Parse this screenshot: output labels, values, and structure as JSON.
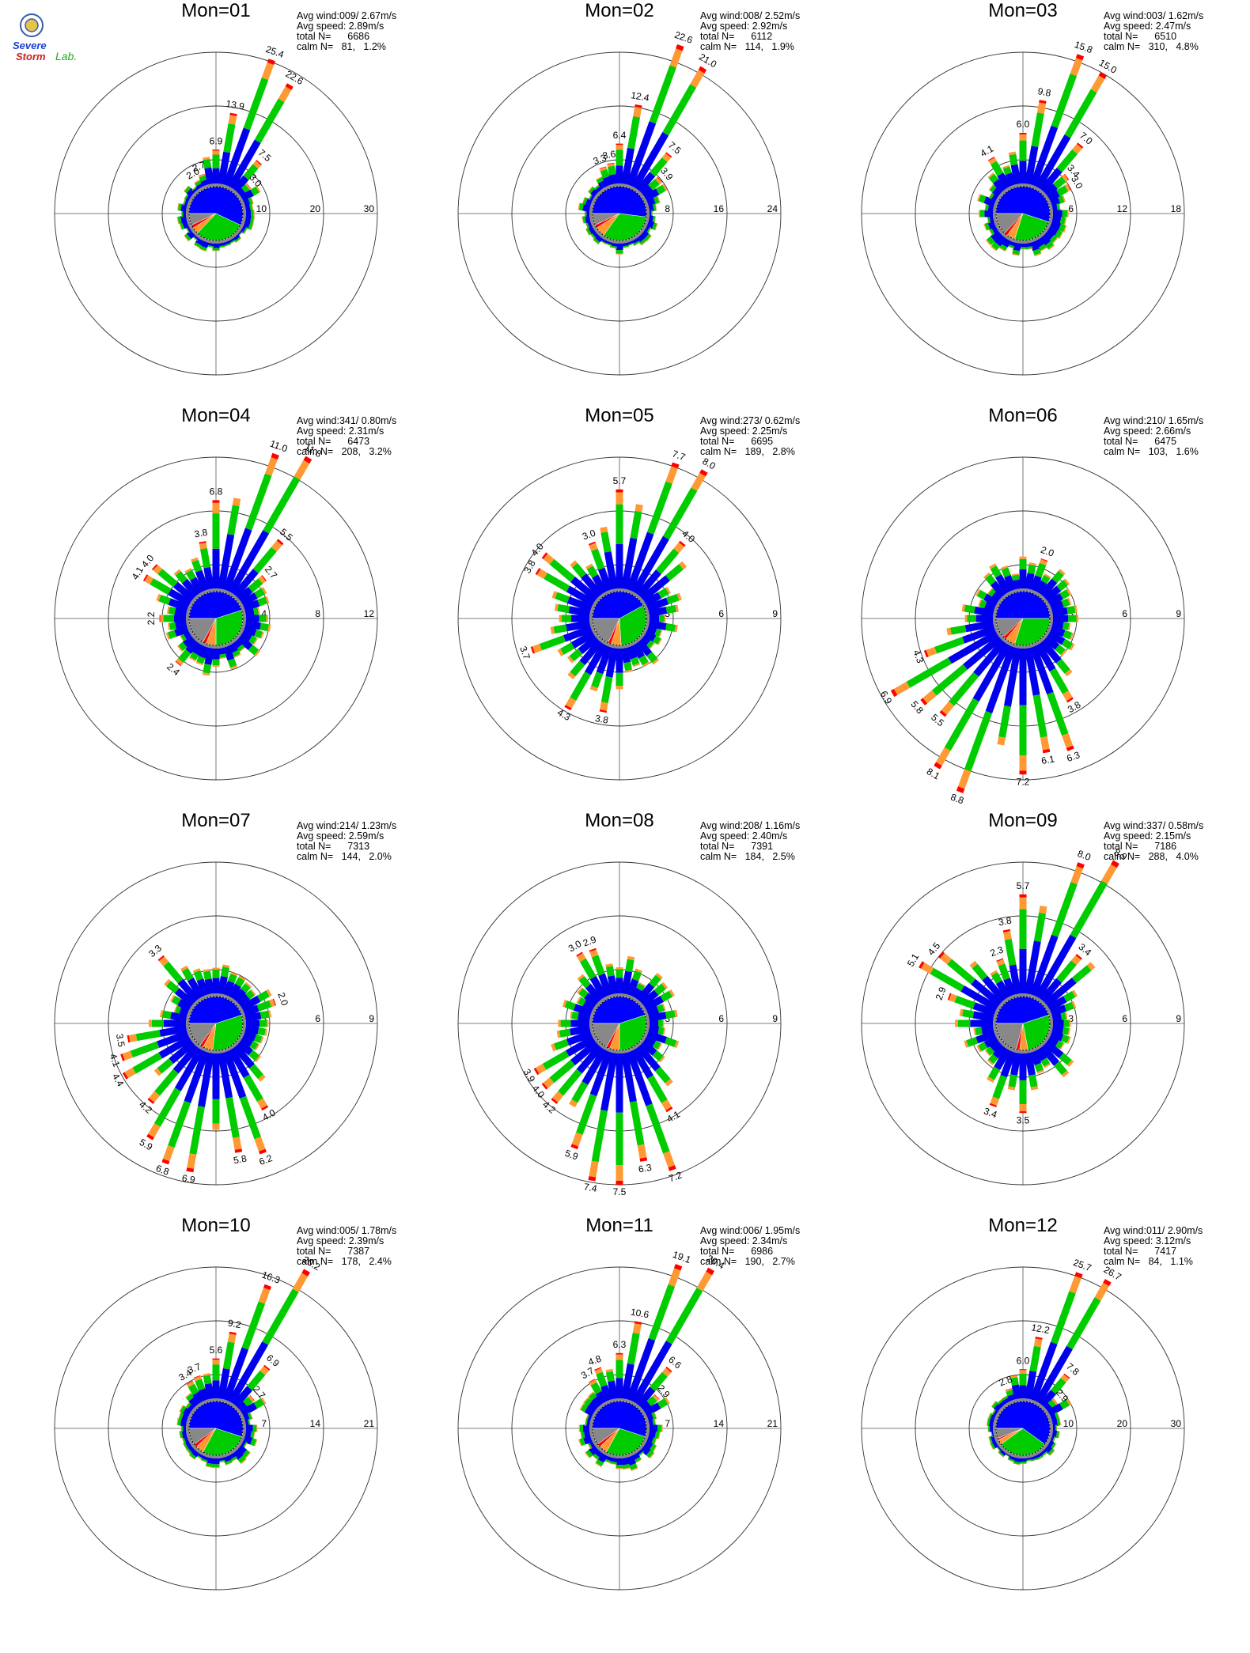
{
  "logo": {
    "line1": "Severe",
    "line2": "Storm",
    "line3": "Lab."
  },
  "colors": {
    "ring": "#333333",
    "axis": "#555555",
    "calm_blue": "#0000ff",
    "calm_green": "#00cc00",
    "calm_orange": "#ff9933",
    "calm_red": "#ff0000",
    "calm_gray": "#888888",
    "bins": [
      "#0000ee",
      "#00cc00",
      "#ff9933",
      "#ff0000"
    ]
  },
  "chart_data": [
    {
      "type": "wind-rose",
      "title": "Mon=01",
      "ring_labels": [
        "10",
        "20",
        "30"
      ],
      "rmax": 30,
      "stats": {
        "avg_wind": "009/ 2.67m/s",
        "avg_speed": "2.89m/s",
        "total_n": "6686",
        "calm_n": "81",
        "calm_pct": "1.2%"
      },
      "calm_fractions": [
        0.57,
        0.3,
        0.04,
        0.02,
        0.07
      ],
      "spokes": [
        {
          "dir": 20,
          "value": 25.4,
          "label": "25.4"
        },
        {
          "dir": 30,
          "value": 22.6,
          "label": "22.6"
        },
        {
          "dir": 10,
          "value": 13.9,
          "label": "13.9"
        },
        {
          "dir": 0,
          "value": 6.9,
          "label": "6.9"
        },
        {
          "dir": 40,
          "value": 7.5,
          "label": "7.5"
        },
        {
          "dir": 50,
          "value": 3.0,
          "label": "3.0"
        },
        {
          "dir": 340,
          "value": 2.7,
          "label": "2.7"
        },
        {
          "dir": 330,
          "value": 2.0,
          "label": "2.0"
        }
      ]
    },
    {
      "type": "wind-rose",
      "title": "Mon=02",
      "ring_labels": [
        "8",
        "16",
        "24"
      ],
      "rmax": 24,
      "stats": {
        "avg_wind": "008/ 2.52m/s",
        "avg_speed": "2.92m/s",
        "total_n": "6112",
        "calm_n": "114",
        "calm_pct": "1.9%"
      },
      "calm_fractions": [
        0.52,
        0.33,
        0.06,
        0.02,
        0.07
      ],
      "spokes": [
        {
          "dir": 20,
          "value": 22.6,
          "label": "22.6"
        },
        {
          "dir": 30,
          "value": 21.0,
          "label": "21.0"
        },
        {
          "dir": 10,
          "value": 12.4,
          "label": "12.4"
        },
        {
          "dir": 0,
          "value": 6.4,
          "label": "6.4"
        },
        {
          "dir": 40,
          "value": 7.5,
          "label": "7.5"
        },
        {
          "dir": 50,
          "value": 3.9,
          "label": "3.9"
        },
        {
          "dir": 350,
          "value": 3.6,
          "label": "3.6"
        },
        {
          "dir": 340,
          "value": 3.3,
          "label": "3.3"
        }
      ]
    },
    {
      "type": "wind-rose",
      "title": "Mon=03",
      "ring_labels": [
        "6",
        "12",
        "18"
      ],
      "rmax": 18,
      "stats": {
        "avg_wind": "003/ 1.62m/s",
        "avg_speed": "2.47m/s",
        "total_n": "6510",
        "calm_n": "310",
        "calm_pct": "4.8%"
      },
      "calm_fractions": [
        0.55,
        0.25,
        0.05,
        0.02,
        0.13
      ],
      "spokes": [
        {
          "dir": 20,
          "value": 15.8,
          "label": "15.8"
        },
        {
          "dir": 30,
          "value": 15.0,
          "label": "15.0"
        },
        {
          "dir": 10,
          "value": 9.8,
          "label": "9.8"
        },
        {
          "dir": 0,
          "value": 6.0,
          "label": "6.0"
        },
        {
          "dir": 40,
          "value": 7.0,
          "label": "7.0"
        },
        {
          "dir": 50,
          "value": 3.4,
          "label": "3.4"
        },
        {
          "dir": 330,
          "value": 4.1,
          "label": "4.1"
        },
        {
          "dir": 60,
          "value": 3.0,
          "label": "3.0"
        }
      ]
    },
    {
      "type": "wind-rose",
      "title": "Mon=04",
      "ring_labels": [
        "4",
        "8",
        "12"
      ],
      "rmax": 12,
      "stats": {
        "avg_wind": "341/ 0.80m/s",
        "avg_speed": "2.31m/s",
        "total_n": "6473",
        "calm_n": "208",
        "calm_pct": "3.2%"
      },
      "calm_fractions": [
        0.45,
        0.3,
        0.06,
        0.02,
        0.17
      ],
      "spokes": [
        {
          "dir": 20,
          "value": 11.0,
          "label": "11.0"
        },
        {
          "dir": 30,
          "value": 11.8,
          "label": "11.8"
        },
        {
          "dir": 0,
          "value": 6.8,
          "label": "6.8"
        },
        {
          "dir": 350,
          "value": 3.8,
          "label": "3.8"
        },
        {
          "dir": 40,
          "value": 5.5,
          "label": "5.5"
        },
        {
          "dir": 50,
          "value": 2.7,
          "label": "2.7"
        },
        {
          "dir": 310,
          "value": 4.0,
          "label": "4.0"
        },
        {
          "dir": 300,
          "value": 4.1,
          "label": "4.1"
        },
        {
          "dir": 270,
          "value": 2.2,
          "label": "2.2"
        },
        {
          "dir": 220,
          "value": 2.4,
          "label": "2.4"
        }
      ]
    },
    {
      "type": "wind-rose",
      "title": "Mon=05",
      "ring_labels": [
        "3",
        "6",
        "9"
      ],
      "rmax": 9,
      "stats": {
        "avg_wind": "273/ 0.62m/s",
        "avg_speed": "2.25m/s",
        "total_n": "6695",
        "calm_n": "189",
        "calm_pct": "2.8%"
      },
      "calm_fractions": [
        0.42,
        0.32,
        0.06,
        0.02,
        0.18
      ],
      "spokes": [
        {
          "dir": 20,
          "value": 7.7,
          "label": "7.7"
        },
        {
          "dir": 30,
          "value": 8.0,
          "label": "8.0"
        },
        {
          "dir": 0,
          "value": 5.7,
          "label": "5.7"
        },
        {
          "dir": 340,
          "value": 3.0,
          "label": "3.0"
        },
        {
          "dir": 40,
          "value": 4.0,
          "label": "4.0"
        },
        {
          "dir": 310,
          "value": 4.0,
          "label": "4.0"
        },
        {
          "dir": 300,
          "value": 3.8,
          "label": "3.8"
        },
        {
          "dir": 250,
          "value": 3.7,
          "label": "3.7"
        },
        {
          "dir": 210,
          "value": 4.3,
          "label": "4.3"
        },
        {
          "dir": 190,
          "value": 3.8,
          "label": "3.8"
        }
      ]
    },
    {
      "type": "wind-rose",
      "title": "Mon=06",
      "ring_labels": [
        "3",
        "6",
        "9"
      ],
      "rmax": 9,
      "stats": {
        "avg_wind": "210/ 1.65m/s",
        "avg_speed": "2.66m/s",
        "total_n": "6475",
        "calm_n": "103",
        "calm_pct": "1.6%"
      },
      "calm_fractions": [
        0.5,
        0.3,
        0.06,
        0.02,
        0.12
      ],
      "spokes": [
        {
          "dir": 200,
          "value": 8.8,
          "label": "8.8"
        },
        {
          "dir": 210,
          "value": 8.1,
          "label": "8.1"
        },
        {
          "dir": 180,
          "value": 7.2,
          "label": "7.2"
        },
        {
          "dir": 170,
          "value": 6.1,
          "label": "6.1"
        },
        {
          "dir": 160,
          "value": 6.3,
          "label": "6.3"
        },
        {
          "dir": 230,
          "value": 5.8,
          "label": "5.8"
        },
        {
          "dir": 240,
          "value": 6.9,
          "label": "6.9"
        },
        {
          "dir": 220,
          "value": 5.5,
          "label": "5.5"
        },
        {
          "dir": 250,
          "value": 4.3,
          "label": "4.3"
        },
        {
          "dir": 150,
          "value": 3.8,
          "label": "3.8"
        },
        {
          "dir": 20,
          "value": 2.0,
          "label": "2.0"
        }
      ]
    },
    {
      "type": "wind-rose",
      "title": "Mon=07",
      "ring_labels": [
        "3",
        "6",
        "9"
      ],
      "rmax": 9,
      "stats": {
        "avg_wind": "214/ 1.23m/s",
        "avg_speed": "2.59m/s",
        "total_n": "7313",
        "calm_n": "144",
        "calm_pct": "2.0%"
      },
      "calm_fractions": [
        0.45,
        0.32,
        0.06,
        0.02,
        0.15
      ],
      "spokes": [
        {
          "dir": 190,
          "value": 6.9,
          "label": "6.9"
        },
        {
          "dir": 200,
          "value": 6.8,
          "label": "6.8"
        },
        {
          "dir": 160,
          "value": 6.2,
          "label": "6.2"
        },
        {
          "dir": 210,
          "value": 5.9,
          "label": "5.9"
        },
        {
          "dir": 170,
          "value": 5.8,
          "label": "5.8"
        },
        {
          "dir": 240,
          "value": 4.4,
          "label": "4.4"
        },
        {
          "dir": 250,
          "value": 4.1,
          "label": "4.1"
        },
        {
          "dir": 150,
          "value": 4.0,
          "label": "4.0"
        },
        {
          "dir": 220,
          "value": 4.2,
          "label": "4.2"
        },
        {
          "dir": 260,
          "value": 3.5,
          "label": "3.5"
        },
        {
          "dir": 320,
          "value": 3.3,
          "label": "3.3"
        },
        {
          "dir": 70,
          "value": 2.0,
          "label": "2.0"
        }
      ]
    },
    {
      "type": "wind-rose",
      "title": "Mon=08",
      "ring_labels": [
        "3",
        "6",
        "9"
      ],
      "rmax": 9,
      "stats": {
        "avg_wind": "208/ 1.16m/s",
        "avg_speed": "2.40m/s",
        "total_n": "7391",
        "calm_n": "184",
        "calm_pct": "2.5%"
      },
      "calm_fractions": [
        0.45,
        0.3,
        0.06,
        0.02,
        0.17
      ],
      "spokes": [
        {
          "dir": 180,
          "value": 7.5,
          "label": "7.5"
        },
        {
          "dir": 190,
          "value": 7.4,
          "label": "7.4"
        },
        {
          "dir": 160,
          "value": 7.2,
          "label": "7.2"
        },
        {
          "dir": 170,
          "value": 6.3,
          "label": "6.3"
        },
        {
          "dir": 200,
          "value": 5.9,
          "label": "5.9"
        },
        {
          "dir": 220,
          "value": 4.2,
          "label": "4.2"
        },
        {
          "dir": 150,
          "value": 4.1,
          "label": "4.1"
        },
        {
          "dir": 230,
          "value": 4.0,
          "label": "4.0"
        },
        {
          "dir": 240,
          "value": 3.9,
          "label": "3.9"
        },
        {
          "dir": 330,
          "value": 3.0,
          "label": "3.0"
        },
        {
          "dir": 340,
          "value": 2.9,
          "label": "2.9"
        }
      ]
    },
    {
      "type": "wind-rose",
      "title": "Mon=09",
      "ring_labels": [
        "3",
        "6",
        "9"
      ],
      "rmax": 9,
      "stats": {
        "avg_wind": "337/ 0.58m/s",
        "avg_speed": "2.15m/s",
        "total_n": "7186",
        "calm_n": "288",
        "calm_pct": "4.0%"
      },
      "calm_fractions": [
        0.45,
        0.27,
        0.05,
        0.02,
        0.21
      ],
      "spokes": [
        {
          "dir": 20,
          "value": 8.0,
          "label": "8.0"
        },
        {
          "dir": 30,
          "value": 8.9,
          "label": "8.9"
        },
        {
          "dir": 0,
          "value": 5.7,
          "label": "5.7"
        },
        {
          "dir": 350,
          "value": 3.8,
          "label": "3.8"
        },
        {
          "dir": 40,
          "value": 3.4,
          "label": "3.4"
        },
        {
          "dir": 310,
          "value": 4.5,
          "label": "4.5"
        },
        {
          "dir": 300,
          "value": 5.1,
          "label": "5.1"
        },
        {
          "dir": 290,
          "value": 2.9,
          "label": "2.9"
        },
        {
          "dir": 340,
          "value": 2.3,
          "label": "2.3"
        },
        {
          "dir": 180,
          "value": 3.5,
          "label": "3.5"
        },
        {
          "dir": 200,
          "value": 3.4,
          "label": "3.4"
        }
      ]
    },
    {
      "type": "wind-rose",
      "title": "Mon=10",
      "ring_labels": [
        "7",
        "14",
        "21"
      ],
      "rmax": 21,
      "stats": {
        "avg_wind": "005/ 1.78m/s",
        "avg_speed": "2.39m/s",
        "total_n": "7387",
        "calm_n": "178",
        "calm_pct": "2.4%"
      },
      "calm_fractions": [
        0.55,
        0.28,
        0.05,
        0.02,
        0.1
      ],
      "spokes": [
        {
          "dir": 20,
          "value": 16.3,
          "label": "16.3"
        },
        {
          "dir": 30,
          "value": 20.2,
          "label": "20.2"
        },
        {
          "dir": 10,
          "value": 9.2,
          "label": "9.2"
        },
        {
          "dir": 0,
          "value": 5.6,
          "label": "5.6"
        },
        {
          "dir": 40,
          "value": 6.9,
          "label": "6.9"
        },
        {
          "dir": 50,
          "value": 2.7,
          "label": "2.7"
        },
        {
          "dir": 340,
          "value": 3.7,
          "label": "3.7"
        },
        {
          "dir": 330,
          "value": 3.4,
          "label": "3.4"
        }
      ]
    },
    {
      "type": "wind-rose",
      "title": "Mon=11",
      "ring_labels": [
        "7",
        "14",
        "21"
      ],
      "rmax": 21,
      "stats": {
        "avg_wind": "006/ 1.95m/s",
        "avg_speed": "2.34m/s",
        "total_n": "6986",
        "calm_n": "190",
        "calm_pct": "2.7%"
      },
      "calm_fractions": [
        0.55,
        0.28,
        0.05,
        0.02,
        0.1
      ],
      "spokes": [
        {
          "dir": 20,
          "value": 19.1,
          "label": "19.1"
        },
        {
          "dir": 30,
          "value": 20.4,
          "label": "20.4"
        },
        {
          "dir": 10,
          "value": 10.6,
          "label": "10.6"
        },
        {
          "dir": 0,
          "value": 6.3,
          "label": "6.3"
        },
        {
          "dir": 40,
          "value": 6.6,
          "label": "6.6"
        },
        {
          "dir": 50,
          "value": 2.9,
          "label": "2.9"
        },
        {
          "dir": 340,
          "value": 4.8,
          "label": "4.8"
        },
        {
          "dir": 330,
          "value": 3.7,
          "label": "3.7"
        }
      ]
    },
    {
      "type": "wind-rose",
      "title": "Mon=12",
      "ring_labels": [
        "10",
        "20",
        "30"
      ],
      "rmax": 30,
      "stats": {
        "avg_wind": "011/ 2.90m/s",
        "avg_speed": "3.12m/s",
        "total_n": "7417",
        "calm_n": "84",
        "calm_pct": "1.1%"
      },
      "calm_fractions": [
        0.6,
        0.3,
        0.03,
        0.01,
        0.06
      ],
      "spokes": [
        {
          "dir": 20,
          "value": 25.7,
          "label": "25.7"
        },
        {
          "dir": 30,
          "value": 26.7,
          "label": "26.7"
        },
        {
          "dir": 10,
          "value": 12.2,
          "label": "12.2"
        },
        {
          "dir": 0,
          "value": 6.0,
          "label": "6.0"
        },
        {
          "dir": 40,
          "value": 7.8,
          "label": "7.8"
        },
        {
          "dir": 50,
          "value": 2.9,
          "label": "2.9"
        },
        {
          "dir": 340,
          "value": 2.8,
          "label": "2.8"
        }
      ]
    }
  ],
  "stat_labels": {
    "avg_wind": "Avg wind:",
    "avg_speed": "Avg speed:",
    "total_n": "total N=",
    "calm_n": "calm N="
  }
}
